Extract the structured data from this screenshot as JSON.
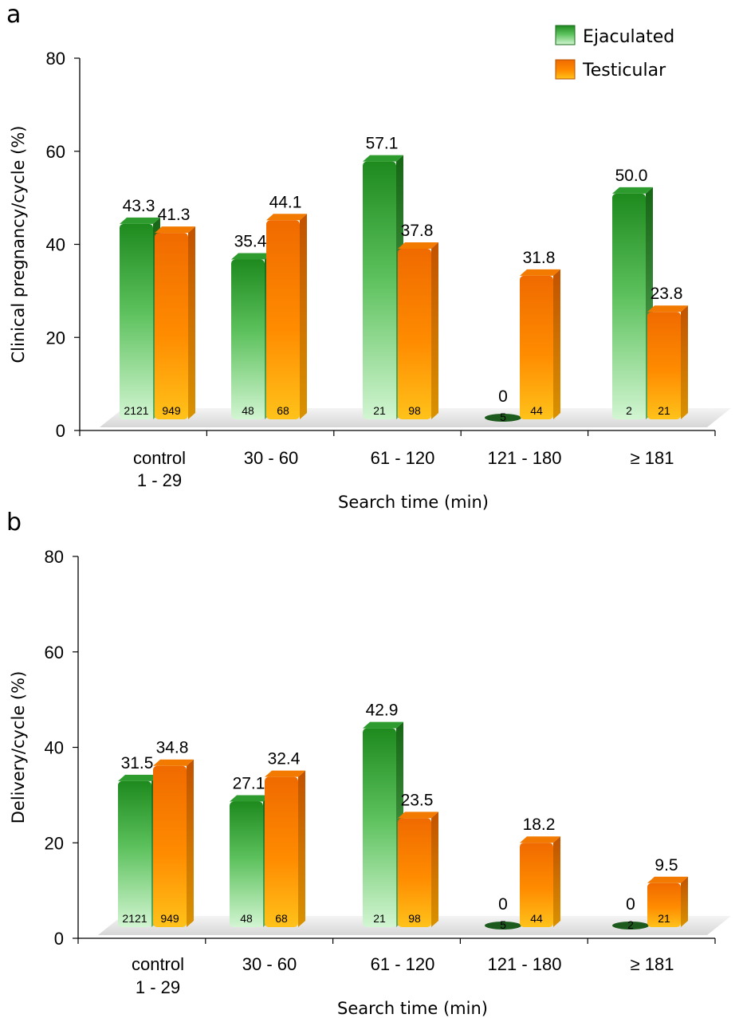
{
  "legend": [
    {
      "label": "Ejaculated",
      "color": "#2f9e2f"
    },
    {
      "label": "Testicular",
      "color": "#f07d00"
    }
  ],
  "colors": {
    "ejaculated_dark": "#1e7a1e",
    "ejaculated_light": "#c6f2c6",
    "testicular_dark": "#e66500",
    "testicular_light": "#ffba10",
    "zero_bar": "#1d5a1d",
    "floor": "#dcdcdc"
  },
  "chart_data": [
    {
      "panel": "a",
      "type": "bar",
      "categories": [
        [
          "control",
          "1 - 29"
        ],
        [
          "30 - 60"
        ],
        [
          "61 - 120"
        ],
        [
          "121 - 180"
        ],
        [
          "≥ 181"
        ]
      ],
      "xlabel": "Search time (min)",
      "ylabel": "Clinical pregnancy/cycle (%)",
      "ylim": [
        0,
        80
      ],
      "yticks": [
        0,
        20,
        40,
        60,
        80
      ],
      "series": [
        {
          "name": "Ejaculated",
          "values": [
            43.3,
            35.4,
            57.1,
            0,
            50.0
          ],
          "labels": [
            "43.3",
            "35.4",
            "57.1",
            "0",
            "50.0"
          ],
          "n": [
            "2121",
            "48",
            "21",
            "5",
            "2"
          ]
        },
        {
          "name": "Testicular",
          "values": [
            41.3,
            44.1,
            37.8,
            31.8,
            23.8
          ],
          "labels": [
            "41.3",
            "44.1",
            "37.8",
            "31.8",
            "23.8"
          ],
          "n": [
            "949",
            "68",
            "98",
            "44",
            "21"
          ]
        }
      ]
    },
    {
      "panel": "b",
      "type": "bar",
      "categories": [
        [
          "control",
          "1 - 29"
        ],
        [
          "30 - 60"
        ],
        [
          "61 - 120"
        ],
        [
          "121 - 180"
        ],
        [
          "≥ 181"
        ]
      ],
      "xlabel": "Search time (min)",
      "ylabel": "Delivery/cycle (%)",
      "ylim": [
        0,
        80
      ],
      "yticks": [
        0,
        20,
        40,
        60,
        80
      ],
      "series": [
        {
          "name": "Ejaculated",
          "values": [
            31.5,
            27.1,
            42.9,
            0,
            0
          ],
          "labels": [
            "31.5",
            "27.1",
            "42.9",
            "0",
            "0"
          ],
          "n": [
            "2121",
            "48",
            "21",
            "5",
            "2"
          ]
        },
        {
          "name": "Testicular",
          "values": [
            34.8,
            32.4,
            23.5,
            18.2,
            9.5
          ],
          "labels": [
            "34.8",
            "32.4",
            "23.5",
            "18.2",
            "9.5"
          ],
          "n": [
            "949",
            "68",
            "98",
            "44",
            "21"
          ]
        }
      ]
    }
  ]
}
